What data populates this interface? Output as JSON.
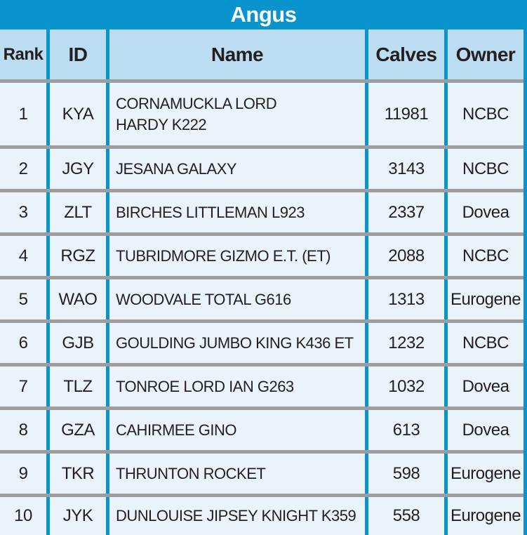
{
  "table": {
    "title": "Angus",
    "columns": [
      "Rank",
      "ID",
      "Name",
      "Calves",
      "Owner"
    ],
    "rows": [
      {
        "rank": "1",
        "id": "KYA",
        "name": "CORNAMUCKLA LORD HARDY K222",
        "calves": "11981",
        "owner": "NCBC"
      },
      {
        "rank": "2",
        "id": "JGY",
        "name": "JESANA GALAXY",
        "calves": "3143",
        "owner": "NCBC"
      },
      {
        "rank": "3",
        "id": "ZLT",
        "name": "BIRCHES LITTLEMAN L923",
        "calves": "2337",
        "owner": "Dovea"
      },
      {
        "rank": "4",
        "id": "RGZ",
        "name": "TUBRIDMORE GIZMO E.T. (ET)",
        "calves": "2088",
        "owner": "NCBC"
      },
      {
        "rank": "5",
        "id": "WAO",
        "name": "WOODVALE TOTAL G616",
        "calves": "1313",
        "owner": "Eurogene"
      },
      {
        "rank": "6",
        "id": "GJB",
        "name": "GOULDING JUMBO KING K436 ET",
        "calves": "1232",
        "owner": "NCBC"
      },
      {
        "rank": "7",
        "id": "TLZ",
        "name": "TONROE LORD IAN G263",
        "calves": "1032",
        "owner": "Dovea"
      },
      {
        "rank": "8",
        "id": "GZA",
        "name": "CAHIRMEE GINO",
        "calves": "613",
        "owner": "Dovea"
      },
      {
        "rank": "9",
        "id": "TKR",
        "name": "THRUNTON ROCKET",
        "calves": "598",
        "owner": "Eurogene"
      },
      {
        "rank": "10",
        "id": "JYK",
        "name": "DUNLOUISE JIPSEY KNIGHT K359",
        "calves": "558",
        "owner": "Eurogene"
      }
    ],
    "colors": {
      "accent_blue": "#0994ce",
      "header_bg": "#bcdcf1",
      "row_bg": "#eaf3fa",
      "separator_gray": "#9d9d9d",
      "title_text": "#ffffff",
      "body_text": "#231f20"
    }
  }
}
